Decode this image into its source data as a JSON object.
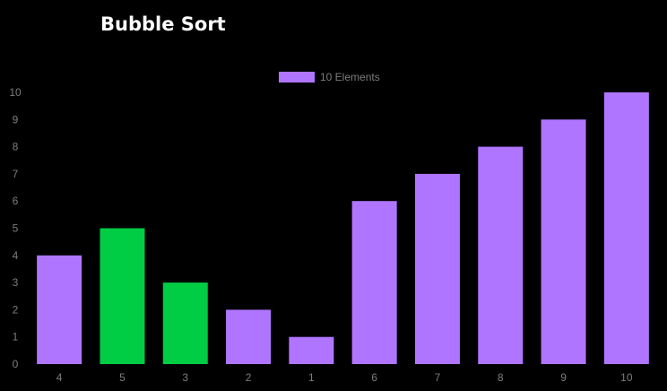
{
  "title": "Bubble Sort",
  "chart_data": {
    "type": "bar",
    "title": "",
    "xlabel": "",
    "ylabel": "",
    "categories": [
      "4",
      "5",
      "3",
      "2",
      "1",
      "6",
      "7",
      "8",
      "9",
      "10"
    ],
    "series": [
      {
        "name": "10 Elements",
        "values": [
          4,
          5,
          3,
          2,
          1,
          6,
          7,
          8,
          9,
          10
        ]
      }
    ],
    "highlighted_indices": [
      1,
      2
    ],
    "ylim": [
      0,
      10
    ],
    "yticks": [
      "0",
      "1",
      "2",
      "3",
      "4",
      "5",
      "6",
      "7",
      "8",
      "9",
      "10"
    ],
    "grid": false,
    "legend_position": "top-center",
    "colors": {
      "bar": "#b075ff",
      "highlight": "#00cc44",
      "axis_text": "#7d7d7d",
      "background": "#000000",
      "title": "#ffffff"
    }
  }
}
